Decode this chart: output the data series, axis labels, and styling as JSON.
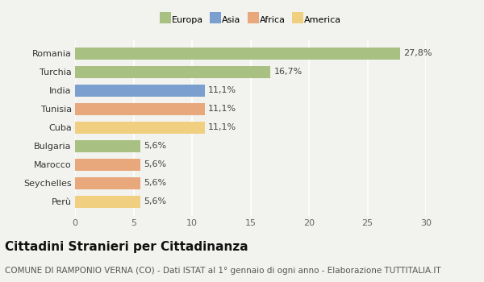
{
  "categories": [
    "Perù",
    "Seychelles",
    "Marocco",
    "Bulgaria",
    "Cuba",
    "Tunisia",
    "India",
    "Turchia",
    "Romania"
  ],
  "values": [
    5.6,
    5.6,
    5.6,
    5.6,
    11.1,
    11.1,
    11.1,
    16.7,
    27.8
  ],
  "labels": [
    "5,6%",
    "5,6%",
    "5,6%",
    "5,6%",
    "11,1%",
    "11,1%",
    "11,1%",
    "16,7%",
    "27,8%"
  ],
  "colors": [
    "#f0d080",
    "#e8a87c",
    "#e8a87c",
    "#a8c082",
    "#f0d080",
    "#e8a87c",
    "#7b9fcf",
    "#a8c082",
    "#a8c082"
  ],
  "legend": [
    {
      "label": "Europa",
      "color": "#a8c082"
    },
    {
      "label": "Asia",
      "color": "#7b9fcf"
    },
    {
      "label": "Africa",
      "color": "#e8a87c"
    },
    {
      "label": "America",
      "color": "#f0d080"
    }
  ],
  "xlim": [
    0,
    30
  ],
  "xticks": [
    0,
    5,
    10,
    15,
    20,
    25,
    30
  ],
  "title": "Cittadini Stranieri per Cittadinanza",
  "subtitle": "COMUNE DI RAMPONIO VERNA (CO) - Dati ISTAT al 1° gennaio di ogni anno - Elaborazione TUTTITALIA.IT",
  "background_color": "#f2f2ee",
  "grid_color": "#ffffff",
  "bar_height": 0.65,
  "title_fontsize": 11,
  "subtitle_fontsize": 7.5,
  "label_fontsize": 8,
  "tick_fontsize": 8,
  "ylabel_fontsize": 8
}
